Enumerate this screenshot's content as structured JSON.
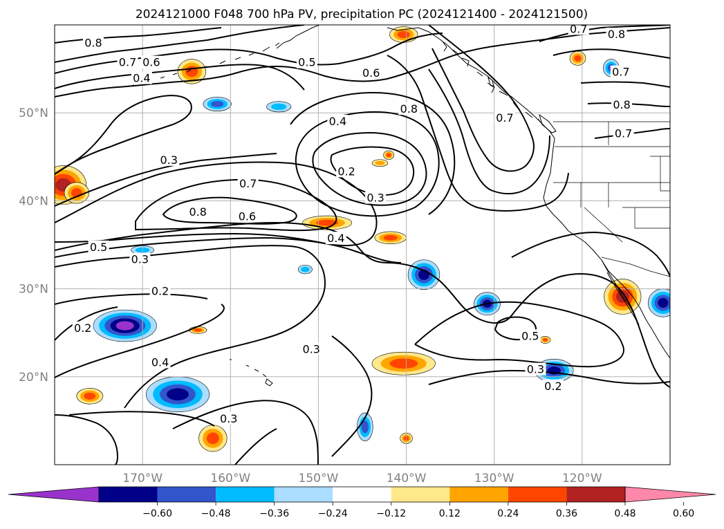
{
  "title": "2024121000 F048 700 hPa PV, precipitation PC (2024121400 - 2024121500)",
  "map": {
    "lon_range": [
      -180,
      -110
    ],
    "lat_range": [
      10,
      60
    ],
    "lat_ticks": [
      {
        "value": 20,
        "label": "20°N"
      },
      {
        "value": 30,
        "label": "30°N"
      },
      {
        "value": 40,
        "label": "40°N"
      },
      {
        "value": 50,
        "label": "50°N"
      }
    ],
    "lon_ticks": [
      {
        "value": -170,
        "label": "170°W"
      },
      {
        "value": -160,
        "label": "160°W"
      },
      {
        "value": -150,
        "label": "150°W"
      },
      {
        "value": -140,
        "label": "140°W"
      },
      {
        "value": -130,
        "label": "130°W"
      },
      {
        "value": -120,
        "label": "120°W"
      }
    ],
    "grid": true,
    "pv_contour_labels": [
      {
        "text": "0.8",
        "lon": -175.6,
        "lat": 57.9
      },
      {
        "text": "0.7",
        "lon": -171.7,
        "lat": 55.7
      },
      {
        "text": "0.6",
        "lon": -169.0,
        "lat": 55.7
      },
      {
        "text": "0.5",
        "lon": -151.3,
        "lat": 55.7
      },
      {
        "text": "0.4",
        "lon": -170.1,
        "lat": 53.9
      },
      {
        "text": "0.6",
        "lon": -144.0,
        "lat": 54.5
      },
      {
        "text": "0.7",
        "lon": -120.4,
        "lat": 59.5
      },
      {
        "text": "0.8",
        "lon": -116.1,
        "lat": 58.9
      },
      {
        "text": "0.7",
        "lon": -115.6,
        "lat": 54.6
      },
      {
        "text": "0.8",
        "lon": -139.7,
        "lat": 50.4
      },
      {
        "text": "0.7",
        "lon": -128.8,
        "lat": 49.4
      },
      {
        "text": "0.8",
        "lon": -115.5,
        "lat": 50.9
      },
      {
        "text": "0.7",
        "lon": -115.3,
        "lat": 47.6
      },
      {
        "text": "0.4",
        "lon": -147.8,
        "lat": 49.0
      },
      {
        "text": "0.3",
        "lon": -167.0,
        "lat": 44.6
      },
      {
        "text": "0.7",
        "lon": -158.0,
        "lat": 41.9
      },
      {
        "text": "0.2",
        "lon": -146.8,
        "lat": 43.3
      },
      {
        "text": "0.3",
        "lon": -143.5,
        "lat": 40.3
      },
      {
        "text": "0.8",
        "lon": -163.7,
        "lat": 38.7
      },
      {
        "text": "0.6",
        "lon": -158.1,
        "lat": 38.2
      },
      {
        "text": "0.4",
        "lon": -148.0,
        "lat": 35.7
      },
      {
        "text": "0.5",
        "lon": -175.0,
        "lat": 34.7
      },
      {
        "text": "0.3",
        "lon": -170.3,
        "lat": 33.3
      },
      {
        "text": "0.2",
        "lon": -168.0,
        "lat": 29.7
      },
      {
        "text": "0.2",
        "lon": -176.8,
        "lat": 25.5
      },
      {
        "text": "0.3",
        "lon": -150.8,
        "lat": 23.1
      },
      {
        "text": "0.5",
        "lon": -125.9,
        "lat": 24.6
      },
      {
        "text": "0.3",
        "lon": -125.3,
        "lat": 20.8
      },
      {
        "text": "0.2",
        "lon": -123.3,
        "lat": 18.9
      },
      {
        "text": "0.4",
        "lon": -168.0,
        "lat": 21.6
      },
      {
        "text": "0.3",
        "lon": -160.2,
        "lat": 15.2
      }
    ],
    "precip_pc_features": [
      {
        "lon": -179.0,
        "lat": 41.8,
        "rx": 2.6,
        "ry": 2.2,
        "value": 0.52
      },
      {
        "lon": -177.5,
        "lat": 40.9,
        "rx": 1.4,
        "ry": 1.2,
        "value": 0.36
      },
      {
        "lon": -164.4,
        "lat": 54.7,
        "rx": 1.6,
        "ry": 1.4,
        "value": 0.42
      },
      {
        "lon": -161.5,
        "lat": 51.0,
        "rx": 1.6,
        "ry": 0.8,
        "value": -0.4
      },
      {
        "lon": -154.5,
        "lat": 50.7,
        "rx": 1.4,
        "ry": 0.6,
        "value": -0.3
      },
      {
        "lon": -140.3,
        "lat": 58.9,
        "rx": 1.6,
        "ry": 0.9,
        "value": 0.38
      },
      {
        "lon": -120.5,
        "lat": 56.2,
        "rx": 0.9,
        "ry": 0.8,
        "value": 0.38
      },
      {
        "lon": -116.7,
        "lat": 55.1,
        "rx": 0.9,
        "ry": 1.0,
        "value": -0.42
      },
      {
        "lon": -142.0,
        "lat": 45.2,
        "rx": 0.6,
        "ry": 0.5,
        "value": 0.38
      },
      {
        "lon": -143.0,
        "lat": 44.3,
        "rx": 0.9,
        "ry": 0.4,
        "value": 0.34
      },
      {
        "lon": -149.0,
        "lat": 37.5,
        "rx": 2.8,
        "ry": 0.8,
        "value": 0.42
      },
      {
        "lon": -141.8,
        "lat": 35.8,
        "rx": 1.8,
        "ry": 0.7,
        "value": 0.36
      },
      {
        "lon": -170.0,
        "lat": 34.4,
        "rx": 1.3,
        "ry": 0.5,
        "value": -0.34
      },
      {
        "lon": -151.5,
        "lat": 32.2,
        "rx": 0.8,
        "ry": 0.5,
        "value": -0.36
      },
      {
        "lon": -138.0,
        "lat": 31.6,
        "rx": 1.8,
        "ry": 1.7,
        "value": -0.52
      },
      {
        "lon": -130.8,
        "lat": 28.3,
        "rx": 1.5,
        "ry": 1.3,
        "value": -0.5
      },
      {
        "lon": -115.4,
        "lat": 29.1,
        "rx": 2.1,
        "ry": 2.0,
        "value": 0.5
      },
      {
        "lon": -110.8,
        "lat": 28.4,
        "rx": 1.7,
        "ry": 1.6,
        "value": -0.56
      },
      {
        "lon": -172.0,
        "lat": 25.8,
        "rx": 3.6,
        "ry": 1.8,
        "value": -0.62
      },
      {
        "lon": -140.3,
        "lat": 21.5,
        "rx": 3.6,
        "ry": 1.3,
        "value": 0.44
      },
      {
        "lon": -123.2,
        "lat": 20.7,
        "rx": 2.2,
        "ry": 1.3,
        "value": -0.52
      },
      {
        "lon": -166.0,
        "lat": 18.0,
        "rx": 3.6,
        "ry": 2.0,
        "value": -0.58
      },
      {
        "lon": -176.0,
        "lat": 17.8,
        "rx": 1.5,
        "ry": 0.9,
        "value": 0.38
      },
      {
        "lon": -162.0,
        "lat": 13.0,
        "rx": 1.6,
        "ry": 1.5,
        "value": 0.46
      },
      {
        "lon": -144.7,
        "lat": 14.3,
        "rx": 0.9,
        "ry": 1.6,
        "value": -0.44
      },
      {
        "lon": -140.0,
        "lat": 13.0,
        "rx": 0.7,
        "ry": 0.6,
        "value": 0.38
      },
      {
        "lon": -124.2,
        "lat": 24.2,
        "rx": 0.6,
        "ry": 0.4,
        "value": 0.36
      },
      {
        "lon": -163.7,
        "lat": 25.3,
        "rx": 1.0,
        "ry": 0.4,
        "value": 0.36
      }
    ]
  },
  "colorbar": {
    "levels": [
      -0.6,
      -0.48,
      -0.36,
      -0.24,
      -0.12,
      0.12,
      0.24,
      0.36,
      0.48,
      0.6
    ],
    "tick_labels": [
      "−0.60",
      "−0.48",
      "−0.36",
      "−0.24",
      "−0.12",
      "0.12",
      "0.24",
      "0.36",
      "0.48",
      "0.60"
    ],
    "colors": [
      "#9933CC",
      "#000088",
      "#3355CC",
      "#00BBFF",
      "#AADDFF",
      "#FFFFFF",
      "#FFE88A",
      "#FFA500",
      "#FF4500",
      "#B22222",
      "#FF88AA"
    ]
  }
}
